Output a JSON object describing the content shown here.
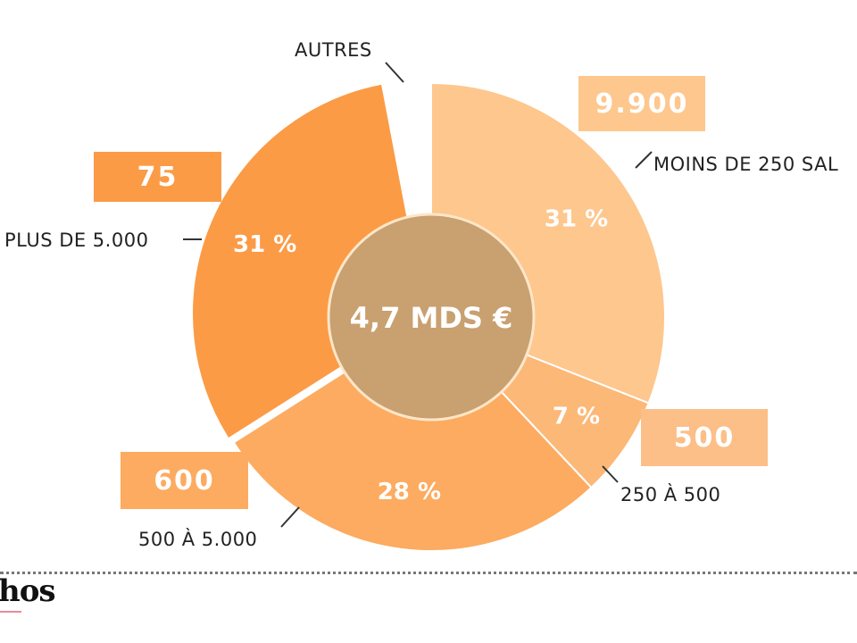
{
  "chart_data": {
    "type": "pie",
    "variant": "donut",
    "center_label": "4,7 MDS €",
    "slices": [
      {
        "category": "MOINS DE 250 SAL",
        "percent": 31,
        "percent_label": "31 %",
        "count": "9.900",
        "color": "#fdc78e",
        "box_color": "#fdc78e"
      },
      {
        "category": "250 À 500",
        "percent": 7,
        "percent_label": "7 %",
        "count": "500",
        "color": "#fcb877",
        "box_color": "#fcbf88"
      },
      {
        "category": "500 À 5.000",
        "percent": 28,
        "percent_label": "28 %",
        "count": "600",
        "color": "#fcab60",
        "box_color": "#fcab60"
      },
      {
        "category": "PLUS DE 5.000",
        "percent": 31,
        "percent_label": "31 %",
        "count": "75",
        "color": "#fb9b46",
        "box_color": "#fb9b46"
      },
      {
        "category": "AUTRES",
        "percent": null,
        "color": "#ffffff"
      }
    ],
    "center_color": "#c9a070",
    "legend": "callouts"
  },
  "logo": {
    "text": "hos"
  }
}
